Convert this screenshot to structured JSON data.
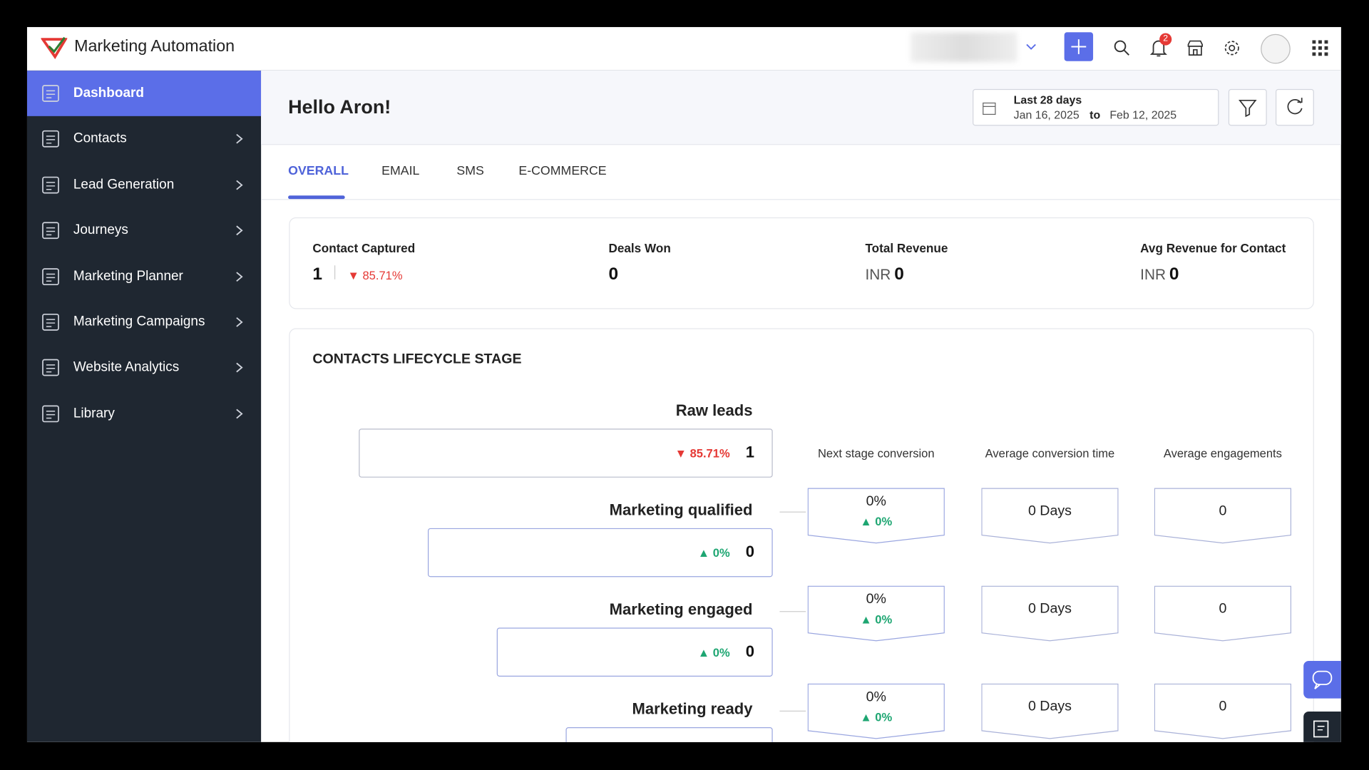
{
  "header": {
    "app_name": "Marketing Automation",
    "notification_count": "2"
  },
  "sidebar": {
    "items": [
      "Dashboard",
      "Contacts",
      "Lead Generation",
      "Journeys",
      "Marketing Planner",
      "Marketing Campaigns",
      "Website Analytics",
      "Library"
    ],
    "active": 0
  },
  "page": {
    "greeting": "Hello Aron!",
    "date_range": {
      "label": "Last 28 days",
      "from": "Jan 16, 2025",
      "to_word": "to",
      "to": "Feb 12, 2025"
    }
  },
  "tabs": {
    "items": [
      "OVERALL",
      "EMAIL",
      "SMS",
      "E-COMMERCE"
    ],
    "active": 0
  },
  "kpis": [
    {
      "label": "Contact Captured",
      "value": 1,
      "change": "85.71%",
      "direction": "down"
    },
    {
      "label": "Deals Won",
      "value": 0
    },
    {
      "label": "Total Revenue",
      "currency": "INR",
      "value": 0
    },
    {
      "label": "Avg Revenue for Contact",
      "currency": "INR",
      "value": 0
    }
  ],
  "lifecycle": {
    "title": "CONTACTS LIFECYCLE STAGE",
    "columns": [
      "Next stage conversion",
      "Average conversion time",
      "Average engagements"
    ],
    "stages": [
      {
        "name": "Raw leads",
        "change": "85.71%",
        "direction": "down",
        "count": 1
      },
      {
        "name": "Marketing qualified",
        "change": "0%",
        "direction": "up",
        "count": 0,
        "conversion": "0%",
        "conversion_change": "0%",
        "time": "0 Days",
        "engagements": 0
      },
      {
        "name": "Marketing engaged",
        "change": "0%",
        "direction": "up",
        "count": 0,
        "conversion": "0%",
        "conversion_change": "0%",
        "time": "0 Days",
        "engagements": 0
      },
      {
        "name": "Marketing ready",
        "conversion": "0%",
        "conversion_change": "0%",
        "time": "0 Days",
        "engagements": 0
      }
    ]
  }
}
